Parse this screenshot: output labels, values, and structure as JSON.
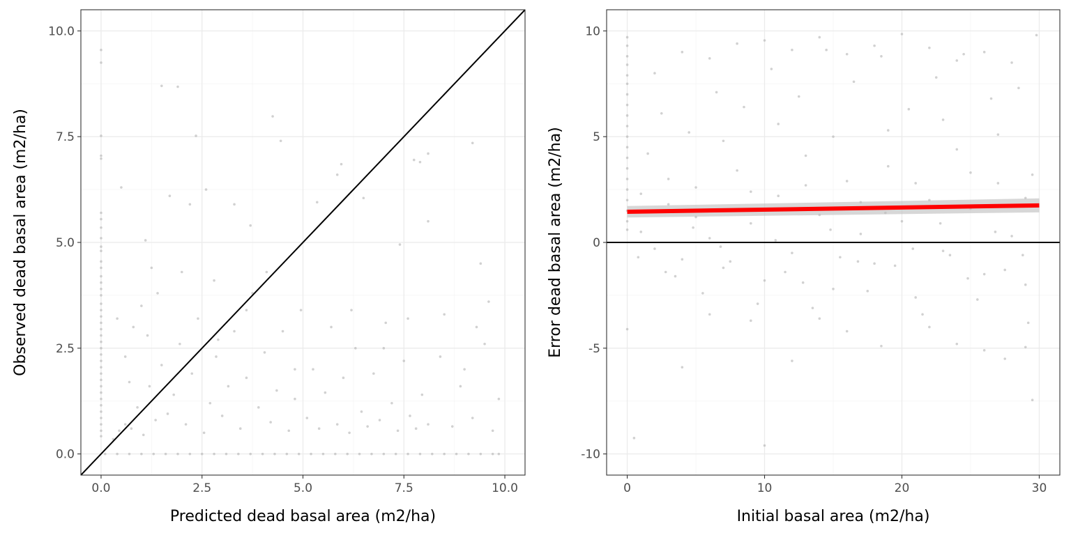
{
  "chart_data": [
    {
      "type": "scatter",
      "title": "",
      "xlabel": "Predicted dead basal area (m2/ha)",
      "ylabel": "Observed dead basal area (m2/ha)",
      "xlim": [
        -0.5,
        10.5
      ],
      "ylim": [
        -0.5,
        10.5
      ],
      "x_ticks": [
        0.0,
        2.5,
        5.0,
        7.5,
        10.0
      ],
      "x_tick_labels": [
        "0.0",
        "2.5",
        "5.0",
        "7.5",
        "10.0"
      ],
      "y_ticks": [
        0.0,
        2.5,
        5.0,
        7.5,
        10.0
      ],
      "y_tick_labels": [
        "0.0",
        "2.5",
        "5.0",
        "7.5",
        "10.0"
      ],
      "grid": true,
      "reference_line": {
        "slope": 1,
        "intercept": 0,
        "color": "#000000"
      },
      "point_color": "#b3b3b3",
      "points": [
        [
          0.0,
          9.55
        ],
        [
          0.0,
          9.25
        ],
        [
          0.0,
          7.52
        ],
        [
          0.0,
          7.05
        ],
        [
          0.0,
          6.98
        ],
        [
          0.0,
          5.7
        ],
        [
          0.0,
          5.55
        ],
        [
          0.0,
          5.35
        ],
        [
          0.0,
          5.1
        ],
        [
          0.0,
          4.9
        ],
        [
          0.0,
          4.8
        ],
        [
          0.0,
          4.55
        ],
        [
          0.0,
          4.4
        ],
        [
          0.0,
          4.2
        ],
        [
          0.0,
          4.05
        ],
        [
          0.0,
          3.9
        ],
        [
          0.0,
          3.75
        ],
        [
          0.0,
          3.55
        ],
        [
          0.0,
          3.4
        ],
        [
          0.0,
          3.25
        ],
        [
          0.0,
          3.1
        ],
        [
          0.0,
          2.95
        ],
        [
          0.0,
          2.8
        ],
        [
          0.0,
          2.65
        ],
        [
          0.0,
          2.5
        ],
        [
          0.0,
          2.35
        ],
        [
          0.0,
          2.2
        ],
        [
          0.0,
          2.05
        ],
        [
          0.0,
          1.9
        ],
        [
          0.0,
          1.75
        ],
        [
          0.0,
          1.6
        ],
        [
          0.0,
          1.45
        ],
        [
          0.0,
          1.3
        ],
        [
          0.0,
          1.15
        ],
        [
          0.0,
          1.0
        ],
        [
          0.0,
          0.85
        ],
        [
          0.0,
          0.7
        ],
        [
          0.0,
          0.55
        ],
        [
          0.0,
          0.42
        ],
        [
          0.3,
          0.35
        ],
        [
          0.45,
          0.55
        ],
        [
          0.6,
          0.7
        ],
        [
          0.75,
          0.6
        ],
        [
          0.9,
          1.1
        ],
        [
          1.05,
          0.45
        ],
        [
          1.2,
          1.6
        ],
        [
          1.35,
          0.8
        ],
        [
          1.5,
          2.1
        ],
        [
          1.65,
          0.95
        ],
        [
          1.8,
          1.4
        ],
        [
          1.95,
          2.6
        ],
        [
          2.1,
          0.7
        ],
        [
          2.25,
          1.9
        ],
        [
          2.4,
          3.2
        ],
        [
          2.55,
          0.5
        ],
        [
          2.7,
          1.2
        ],
        [
          2.85,
          2.3
        ],
        [
          3.0,
          0.9
        ],
        [
          3.15,
          1.6
        ],
        [
          3.3,
          2.9
        ],
        [
          3.45,
          0.6
        ],
        [
          3.6,
          1.8
        ],
        [
          3.75,
          3.8
        ],
        [
          3.9,
          1.1
        ],
        [
          4.05,
          2.4
        ],
        [
          4.2,
          0.75
        ],
        [
          4.35,
          1.5
        ],
        [
          4.5,
          2.9
        ],
        [
          4.65,
          0.55
        ],
        [
          4.8,
          1.3
        ],
        [
          4.95,
          3.4
        ],
        [
          5.1,
          0.85
        ],
        [
          5.25,
          2.0
        ],
        [
          5.4,
          0.6
        ],
        [
          5.55,
          1.45
        ],
        [
          5.7,
          3.0
        ],
        [
          5.85,
          0.7
        ],
        [
          6.0,
          1.8
        ],
        [
          6.15,
          0.5
        ],
        [
          6.3,
          2.5
        ],
        [
          6.45,
          1.0
        ],
        [
          6.6,
          0.65
        ],
        [
          6.75,
          1.9
        ],
        [
          6.9,
          0.8
        ],
        [
          7.05,
          3.1
        ],
        [
          7.2,
          1.2
        ],
        [
          7.35,
          0.55
        ],
        [
          7.5,
          2.2
        ],
        [
          7.65,
          0.9
        ],
        [
          7.8,
          0.6
        ],
        [
          7.95,
          1.4
        ],
        [
          8.1,
          0.7
        ],
        [
          8.4,
          2.3
        ],
        [
          8.7,
          0.65
        ],
        [
          9.0,
          2.0
        ],
        [
          9.2,
          0.85
        ],
        [
          9.5,
          2.6
        ],
        [
          9.7,
          0.55
        ],
        [
          9.85,
          1.3
        ],
        [
          0.5,
          6.3
        ],
        [
          0.8,
          3.0
        ],
        [
          1.1,
          5.05
        ],
        [
          1.25,
          4.4
        ],
        [
          1.5,
          8.7
        ],
        [
          1.7,
          6.1
        ],
        [
          1.9,
          8.68
        ],
        [
          2.2,
          5.9
        ],
        [
          2.35,
          7.52
        ],
        [
          2.6,
          6.25
        ],
        [
          2.8,
          4.1
        ],
        [
          3.3,
          5.9
        ],
        [
          3.7,
          5.4
        ],
        [
          4.1,
          4.3
        ],
        [
          4.25,
          7.98
        ],
        [
          4.45,
          7.4
        ],
        [
          5.35,
          5.95
        ],
        [
          5.85,
          6.6
        ],
        [
          5.95,
          6.85
        ],
        [
          6.5,
          6.05
        ],
        [
          7.4,
          4.95
        ],
        [
          7.75,
          6.95
        ],
        [
          7.9,
          6.9
        ],
        [
          8.1,
          7.1
        ],
        [
          9.2,
          7.35
        ],
        [
          9.4,
          4.5
        ],
        [
          8.1,
          5.5
        ],
        [
          9.3,
          3.0
        ],
        [
          8.5,
          3.3
        ],
        [
          2.0,
          4.3
        ],
        [
          1.0,
          3.5
        ],
        [
          0.4,
          3.2
        ],
        [
          0.6,
          2.3
        ],
        [
          0.7,
          1.7
        ],
        [
          1.15,
          2.8
        ],
        [
          1.4,
          3.8
        ],
        [
          2.9,
          2.7
        ],
        [
          3.6,
          3.4
        ],
        [
          4.8,
          2.0
        ],
        [
          6.2,
          3.4
        ],
        [
          7.0,
          2.5
        ],
        [
          7.6,
          3.2
        ],
        [
          8.9,
          1.6
        ],
        [
          9.6,
          3.6
        ],
        [
          0.1,
          0.0
        ],
        [
          0.4,
          0.0
        ],
        [
          0.7,
          0.0
        ],
        [
          1.0,
          0.0
        ],
        [
          1.3,
          0.0
        ],
        [
          1.6,
          0.0
        ],
        [
          1.9,
          0.0
        ],
        [
          2.2,
          0.0
        ],
        [
          2.5,
          0.0
        ],
        [
          2.8,
          0.0
        ],
        [
          3.1,
          0.0
        ],
        [
          3.4,
          0.0
        ],
        [
          3.7,
          0.0
        ],
        [
          4.0,
          0.0
        ],
        [
          4.3,
          0.0
        ],
        [
          4.6,
          0.0
        ],
        [
          4.9,
          0.0
        ],
        [
          5.2,
          0.0
        ],
        [
          5.5,
          0.0
        ],
        [
          5.8,
          0.0
        ],
        [
          6.1,
          0.0
        ],
        [
          6.4,
          0.0
        ],
        [
          6.7,
          0.0
        ],
        [
          7.0,
          0.0
        ],
        [
          7.3,
          0.0
        ],
        [
          7.6,
          0.0
        ],
        [
          7.9,
          0.0
        ],
        [
          8.2,
          0.0
        ],
        [
          8.5,
          0.0
        ],
        [
          8.8,
          0.0
        ],
        [
          9.1,
          0.0
        ],
        [
          9.4,
          0.0
        ],
        [
          9.7,
          0.0
        ],
        [
          9.85,
          0.0
        ]
      ]
    },
    {
      "type": "scatter",
      "title": "",
      "xlabel": "Initial basal area (m2/ha)",
      "ylabel": "Error dead basal area (m2/ha)",
      "xlim": [
        -1.5,
        31.5
      ],
      "ylim": [
        -11,
        11
      ],
      "x_ticks": [
        0,
        10,
        20,
        30
      ],
      "x_tick_labels": [
        "0",
        "10",
        "20",
        "30"
      ],
      "y_ticks": [
        -10,
        -5,
        0,
        5,
        10
      ],
      "y_tick_labels": [
        "-10",
        "-5",
        "0",
        "5",
        "10"
      ],
      "grid": true,
      "reference_line": {
        "slope": 0,
        "intercept": 0,
        "color": "#000000"
      },
      "fit_line": {
        "x": [
          0,
          30
        ],
        "y": [
          1.45,
          1.75
        ],
        "ci_upper": [
          1.72,
          2.08
        ],
        "ci_lower": [
          1.18,
          1.42
        ],
        "color": "#ff0000",
        "band_color": "#bdbdbd"
      },
      "point_color": "#b3b3b3",
      "points": [
        [
          0,
          9.7
        ],
        [
          0,
          9.3
        ],
        [
          0,
          8.8
        ],
        [
          0,
          8.4
        ],
        [
          0,
          7.9
        ],
        [
          0,
          7.5
        ],
        [
          0,
          7.0
        ],
        [
          0,
          6.5
        ],
        [
          0,
          6.0
        ],
        [
          0,
          5.5
        ],
        [
          0,
          5.0
        ],
        [
          0,
          4.5
        ],
        [
          0,
          4.0
        ],
        [
          0,
          3.5
        ],
        [
          0,
          3.0
        ],
        [
          0,
          2.5
        ],
        [
          0,
          2.0
        ],
        [
          0,
          1.5
        ],
        [
          0,
          1.0
        ],
        [
          0,
          0.6
        ],
        [
          0,
          -4.1
        ],
        [
          0.5,
          -9.25
        ],
        [
          10,
          -9.6
        ],
        [
          4,
          -5.9
        ],
        [
          12,
          -5.6
        ],
        [
          26,
          -5.1
        ],
        [
          29,
          -4.95
        ],
        [
          29.5,
          -7.45
        ],
        [
          24,
          -4.8
        ],
        [
          16,
          -4.2
        ],
        [
          18.5,
          -4.9
        ],
        [
          22,
          -4.0
        ],
        [
          27.5,
          -5.5
        ],
        [
          9,
          -3.7
        ],
        [
          14,
          -3.6
        ],
        [
          6,
          -3.4
        ],
        [
          1,
          0.5
        ],
        [
          2,
          -0.3
        ],
        [
          3,
          1.8
        ],
        [
          4,
          -0.8
        ],
        [
          5,
          2.6
        ],
        [
          6,
          0.2
        ],
        [
          7,
          -1.2
        ],
        [
          8,
          3.4
        ],
        [
          9,
          0.9
        ],
        [
          10,
          -1.8
        ],
        [
          11,
          2.2
        ],
        [
          12,
          -0.5
        ],
        [
          13,
          4.1
        ],
        [
          14,
          1.3
        ],
        [
          15,
          -2.2
        ],
        [
          16,
          2.9
        ],
        [
          17,
          0.4
        ],
        [
          18,
          -1.0
        ],
        [
          19,
          3.6
        ],
        [
          20,
          1.0
        ],
        [
          21,
          -2.6
        ],
        [
          22,
          2.0
        ],
        [
          23,
          -0.4
        ],
        [
          24,
          4.4
        ],
        [
          25,
          1.6
        ],
        [
          26,
          -1.5
        ],
        [
          27,
          2.8
        ],
        [
          28,
          0.3
        ],
        [
          29,
          -2.0
        ],
        [
          29.5,
          3.2
        ],
        [
          1.5,
          4.2
        ],
        [
          2.5,
          6.1
        ],
        [
          3.5,
          -1.6
        ],
        [
          4.5,
          5.2
        ],
        [
          5.5,
          -2.4
        ],
        [
          6.5,
          7.1
        ],
        [
          7.5,
          -0.9
        ],
        [
          8.5,
          6.4
        ],
        [
          9.5,
          -2.9
        ],
        [
          10.5,
          8.2
        ],
        [
          11.5,
          -1.4
        ],
        [
          12.5,
          6.9
        ],
        [
          13.5,
          -3.1
        ],
        [
          14.5,
          9.1
        ],
        [
          15.5,
          -0.7
        ],
        [
          16.5,
          7.6
        ],
        [
          17.5,
          -2.3
        ],
        [
          18.5,
          8.8
        ],
        [
          19.5,
          -1.1
        ],
        [
          20.5,
          6.3
        ],
        [
          21.5,
          -3.4
        ],
        [
          22.5,
          7.8
        ],
        [
          23.5,
          -0.6
        ],
        [
          24.5,
          8.9
        ],
        [
          25.5,
          -2.7
        ],
        [
          26.5,
          6.8
        ],
        [
          27.5,
          -1.3
        ],
        [
          28.5,
          7.3
        ],
        [
          29.2,
          -3.8
        ],
        [
          2,
          8.0
        ],
        [
          4,
          9.0
        ],
        [
          6,
          8.7
        ],
        [
          8,
          9.4
        ],
        [
          10,
          9.55
        ],
        [
          12,
          9.1
        ],
        [
          14,
          9.7
        ],
        [
          16,
          8.9
        ],
        [
          18,
          9.3
        ],
        [
          20,
          9.85
        ],
        [
          22,
          9.2
        ],
        [
          24,
          8.6
        ],
        [
          26,
          9.0
        ],
        [
          28,
          8.5
        ],
        [
          29.8,
          9.8
        ],
        [
          1,
          2.3
        ],
        [
          3,
          3.0
        ],
        [
          5,
          1.2
        ],
        [
          7,
          4.8
        ],
        [
          9,
          2.4
        ],
        [
          11,
          5.6
        ],
        [
          13,
          2.7
        ],
        [
          15,
          5.0
        ],
        [
          17,
          1.9
        ],
        [
          19,
          5.3
        ],
        [
          21,
          2.8
        ],
        [
          23,
          5.8
        ],
        [
          25,
          3.3
        ],
        [
          27,
          5.1
        ],
        [
          29,
          2.1
        ],
        [
          0.8,
          -0.7
        ],
        [
          2.8,
          -1.4
        ],
        [
          4.8,
          0.7
        ],
        [
          6.8,
          -0.2
        ],
        [
          8.8,
          1.5
        ],
        [
          10.8,
          0.1
        ],
        [
          12.8,
          -1.9
        ],
        [
          14.8,
          0.6
        ],
        [
          16.8,
          -0.9
        ],
        [
          18.8,
          1.4
        ],
        [
          20.8,
          -0.3
        ],
        [
          22.8,
          0.9
        ],
        [
          24.8,
          -1.7
        ],
        [
          26.8,
          0.5
        ],
        [
          28.8,
          -0.6
        ]
      ]
    }
  ]
}
